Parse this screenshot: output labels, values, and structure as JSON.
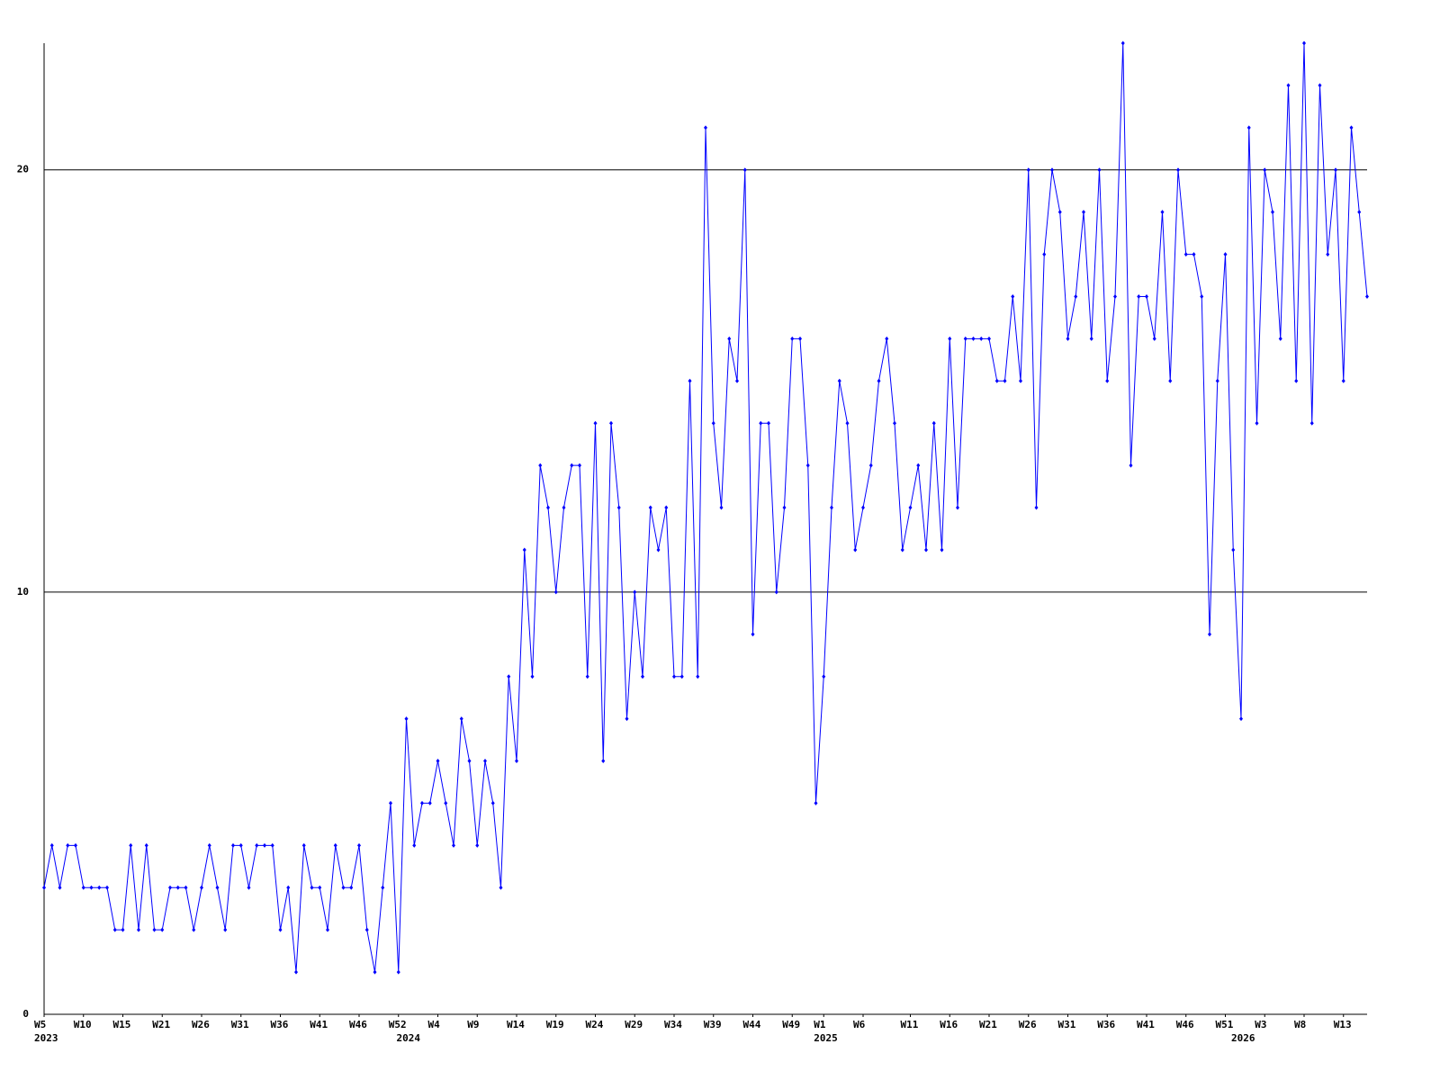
{
  "chart_data": {
    "type": "line",
    "categories": [
      "W5",
      null,
      null,
      null,
      null,
      "W10",
      null,
      null,
      null,
      null,
      "W15",
      null,
      null,
      null,
      null,
      "W21",
      null,
      null,
      null,
      null,
      "W26",
      null,
      null,
      null,
      null,
      "W31",
      null,
      null,
      null,
      null,
      "W36",
      null,
      null,
      null,
      null,
      "W41",
      null,
      null,
      null,
      null,
      "W46",
      null,
      null,
      null,
      null,
      "W52",
      null,
      null,
      null,
      null,
      "W4",
      null,
      null,
      null,
      null,
      "W9",
      null,
      null,
      null,
      null,
      "W14",
      null,
      null,
      null,
      null,
      "W19",
      null,
      null,
      null,
      null,
      "W24",
      null,
      null,
      null,
      null,
      "W29",
      null,
      null,
      null,
      null,
      "W34",
      null,
      null,
      null,
      null,
      "W39",
      null,
      null,
      null,
      null,
      "W44",
      null,
      null,
      null,
      null,
      "W49",
      null,
      null,
      null,
      "W1",
      null,
      null,
      null,
      null,
      "W6",
      null,
      null,
      null,
      null,
      null,
      "W11",
      null,
      null,
      null,
      null,
      "W16",
      null,
      null,
      null,
      null,
      "W21",
      null,
      null,
      null,
      null,
      "W26",
      null,
      null,
      null,
      null,
      "W31",
      null,
      null,
      null,
      null,
      "W36",
      null,
      null,
      null,
      null,
      "W41",
      null,
      null,
      null,
      null,
      "W46",
      null,
      null,
      null,
      null,
      "W51",
      null,
      null,
      null,
      null,
      "W3",
      null,
      null,
      null,
      null,
      "W8",
      null,
      null,
      null,
      null,
      "W13",
      null,
      null,
      null
    ],
    "category_years": [
      "2023",
      null,
      null,
      null,
      null,
      null,
      null,
      null,
      null,
      null,
      null,
      null,
      null,
      null,
      null,
      null,
      null,
      null,
      null,
      null,
      null,
      null,
      null,
      null,
      null,
      null,
      null,
      null,
      null,
      null,
      null,
      null,
      null,
      null,
      null,
      null,
      null,
      null,
      null,
      null,
      null,
      null,
      null,
      null,
      null,
      null,
      "2024",
      null,
      null,
      null,
      null,
      null,
      null,
      null,
      null,
      null,
      null,
      null,
      null,
      null,
      null,
      null,
      null,
      null,
      null,
      null,
      null,
      null,
      null,
      null,
      null,
      null,
      null,
      null,
      null,
      null,
      null,
      null,
      null,
      null,
      null,
      null,
      null,
      null,
      null,
      null,
      null,
      null,
      null,
      null,
      null,
      null,
      null,
      null,
      null,
      null,
      null,
      null,
      null,
      "2025",
      null,
      null,
      null,
      null,
      null,
      null,
      null,
      null,
      null,
      null,
      null,
      null,
      null,
      null,
      null,
      null,
      null,
      null,
      null,
      null,
      null,
      null,
      null,
      null,
      null,
      null,
      null,
      null,
      null,
      null,
      null,
      null,
      null,
      null,
      null,
      null,
      null,
      null,
      null,
      null,
      null,
      null,
      null,
      null,
      null,
      null,
      null,
      null,
      null,
      null,
      null,
      null,
      "2026",
      null,
      null,
      null,
      null,
      null,
      null,
      null,
      null,
      null,
      null,
      null,
      null,
      null,
      null,
      null,
      null
    ],
    "series": [
      {
        "color": "#0000ff",
        "values": [
          3,
          4,
          3,
          4,
          4,
          3,
          3,
          3,
          3,
          2,
          2,
          4,
          2,
          4,
          2,
          2,
          3,
          3,
          3,
          2,
          3,
          4,
          3,
          2,
          4,
          4,
          3,
          4,
          4,
          4,
          2,
          3,
          1,
          4,
          3,
          3,
          2,
          4,
          3,
          3,
          4,
          2,
          1,
          3,
          5,
          1,
          7,
          4,
          5,
          5,
          6,
          5,
          4,
          7,
          6,
          4,
          6,
          5,
          3,
          8,
          6,
          11,
          8,
          13,
          12,
          10,
          12,
          13,
          13,
          8,
          14,
          6,
          14,
          12,
          7,
          10,
          8,
          12,
          11,
          12,
          8,
          8,
          15,
          8,
          21,
          14,
          12,
          16,
          15,
          20,
          9,
          14,
          14,
          10,
          12,
          16,
          16,
          13,
          5,
          8,
          12,
          15,
          14,
          11,
          12,
          13,
          15,
          16,
          14,
          11,
          12,
          13,
          11,
          14,
          11,
          16,
          12,
          16,
          16,
          16,
          16,
          15,
          15,
          17,
          15,
          20,
          12,
          18,
          20,
          19,
          16,
          17,
          19,
          16,
          20,
          15,
          17,
          23,
          13,
          17,
          17,
          16,
          19,
          15,
          20,
          18,
          18,
          17,
          9,
          15,
          18,
          11,
          7,
          21,
          14,
          20,
          19,
          16,
          22,
          15,
          23,
          14,
          22,
          18,
          20,
          15,
          21,
          19,
          17
        ]
      }
    ],
    "ylim": [
      0,
      23
    ],
    "yticks": [
      0,
      10,
      20
    ],
    "grid": true
  }
}
